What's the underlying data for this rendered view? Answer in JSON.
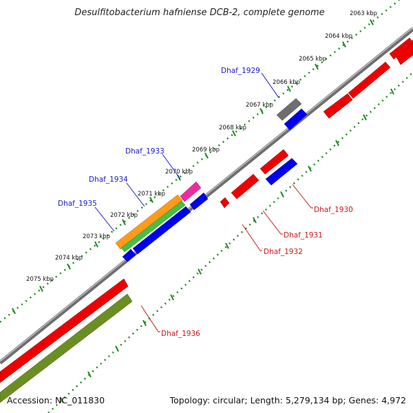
{
  "title": "Desulfitobacterium hafniense DCB-2, complete genome",
  "footer": {
    "accession": "Accession: NC_011830",
    "summary": "Topology: circular; Length: 5,279,134 bp; Genes: 4,972"
  },
  "ruler_labels": [
    "2063 kbp",
    "2064 kbp",
    "2065 kbp",
    "2066 kbp",
    "2067 kbp",
    "2068 kbp",
    "2069 kbp",
    "2070 kbp",
    "2071 kbp",
    "2072 kbp",
    "2073 kbp",
    "2074 kbp",
    "2075 kbp"
  ],
  "colors": {
    "backbone": "#8c8c8c",
    "ruler_tick": "#1f8a1f",
    "label_forward": "#1a1acc",
    "label_reverse": "#cc1a1a",
    "red_gene": "#ee0000",
    "blue_gene": "#0000ee",
    "gray_gene": "#6e6e6e",
    "orange_gene": "#ff9a1a",
    "green_gene": "#44c044",
    "pink_gene": "#ee2aa0",
    "olive_gene": "#6b8e23"
  },
  "gene_labels": {
    "dhaf_1929": "Dhaf_1929",
    "dhaf_1933": "Dhaf_1933",
    "dhaf_1934": "Dhaf_1934",
    "dhaf_1935": "Dhaf_1935",
    "dhaf_1930": "Dhaf_1930",
    "dhaf_1931": "Dhaf_1931",
    "dhaf_1932": "Dhaf_1932",
    "dhaf_1936": "Dhaf_1936"
  }
}
